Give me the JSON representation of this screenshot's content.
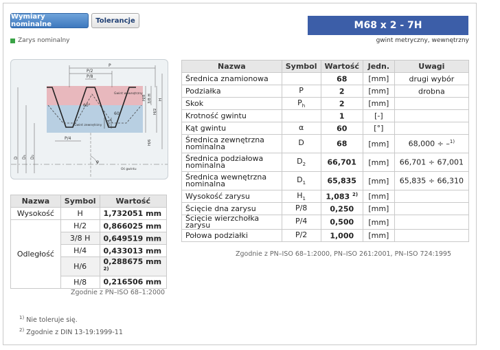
{
  "tabs": [
    {
      "label": "Wymiary nominalne",
      "active": true
    },
    {
      "label": "Tolerancje",
      "active": false
    }
  ],
  "legend_label": "Zarys nominalny",
  "legend_color": "#3aa346",
  "title": "M68 x 2 - 7H",
  "subtitle": "gwint metryczny, wewnętrzny",
  "diagram": {
    "labels": {
      "p": "P",
      "p2": "P/2",
      "p8": "P/8",
      "p4": "P/4",
      "h8": "H/8",
      "h38": "3/8 H",
      "h2": "H/2",
      "h4": "H/4",
      "h6": "H/6",
      "h": "H",
      "angle": "60°",
      "angle_half": "30°",
      "inner_label": "Gwint wewnętrzny",
      "outer_label": "Gwint zewnętrzny",
      "axis_label": "Oś gwintu",
      "d": "D",
      "d1": "D₁",
      "d2": "D₂",
      "phi": "φ"
    }
  },
  "main_table": {
    "headers": [
      "Nazwa",
      "Symbol",
      "Wartość",
      "Jedn.",
      "Uwagi"
    ],
    "rows": [
      {
        "name": "Średnica znamionowa",
        "symbol": "",
        "sub": "",
        "value": "68",
        "sup": "",
        "unit": "[mm]",
        "note": "drugi wybór"
      },
      {
        "name": "Podziałka",
        "symbol": "P",
        "sub": "",
        "value": "2",
        "sup": "",
        "unit": "[mm]",
        "note": "drobna"
      },
      {
        "name": "Skok",
        "symbol": "P",
        "sub": "h",
        "value": "2",
        "sup": "",
        "unit": "[mm]",
        "note": ""
      },
      {
        "name": "Krotność gwintu",
        "symbol": "",
        "sub": "",
        "value": "1",
        "sup": "",
        "unit": "[-]",
        "note": ""
      },
      {
        "name": "Kąt gwintu",
        "symbol": "α",
        "sub": "",
        "value": "60",
        "sup": "",
        "unit": "[°]",
        "note": ""
      },
      {
        "name": "Średnica zewnętrzna nominalna",
        "symbol": "D",
        "sub": "",
        "value": "68",
        "sup": "",
        "unit": "[mm]",
        "note": "68,000 ÷ –",
        "note_sup": "1)"
      },
      {
        "name": "Średnica podziałowa nominalna",
        "symbol": "D",
        "sub": "2",
        "value": "66,701",
        "sup": "",
        "unit": "[mm]",
        "note": "66,701 ÷ 67,001"
      },
      {
        "name": "Średnica wewnętrzna nominalna",
        "symbol": "D",
        "sub": "1",
        "value": "65,835",
        "sup": "",
        "unit": "[mm]",
        "note": "65,835 ÷ 66,310"
      },
      {
        "name": "Wysokość zarysu",
        "symbol": "H",
        "sub": "1",
        "value": "1,083",
        "sup": "2)",
        "unit": "[mm]",
        "note": ""
      },
      {
        "name": "Ścięcie dna zarysu",
        "symbol": "P/8",
        "sub": "",
        "value": "0,250",
        "sup": "",
        "unit": "[mm]",
        "note": ""
      },
      {
        "name": "Ścięcie wierzchołka zarysu",
        "symbol": "P/4",
        "sub": "",
        "value": "0,500",
        "sup": "",
        "unit": "[mm]",
        "note": ""
      },
      {
        "name": "Połowa podziałki",
        "symbol": "P/2",
        "sub": "",
        "value": "1,000",
        "sup": "",
        "unit": "[mm]",
        "note": ""
      }
    ],
    "source_note": "Zgodnie z PN–ISO 68–1:2000, PN–ISO 261:2001, PN–ISO 724:1995"
  },
  "left_table": {
    "headers": [
      "Nazwa",
      "Symbol",
      "Wartość"
    ],
    "height": {
      "name": "Wysokość",
      "symbol": "H",
      "value": "1,732051 mm"
    },
    "distance_name": "Odległość",
    "distances": [
      {
        "symbol": "H/2",
        "value": "0,866025 mm",
        "sup": ""
      },
      {
        "symbol": "3/8 H",
        "value": "0,649519 mm",
        "sup": ""
      },
      {
        "symbol": "H/4",
        "value": "0,433013 mm",
        "sup": ""
      },
      {
        "symbol": "H/6",
        "value": "0,288675 mm",
        "sup": "2)"
      },
      {
        "symbol": "H/8",
        "value": "0,216506 mm",
        "sup": ""
      }
    ],
    "source_note": "Zgodnie z PN–ISO 68–1:2000"
  },
  "footnotes": [
    {
      "mark": "1)",
      "text": "Nie toleruje się."
    },
    {
      "mark": "2)",
      "text": "Zgodnie z DIN 13-19:1999-11"
    }
  ]
}
